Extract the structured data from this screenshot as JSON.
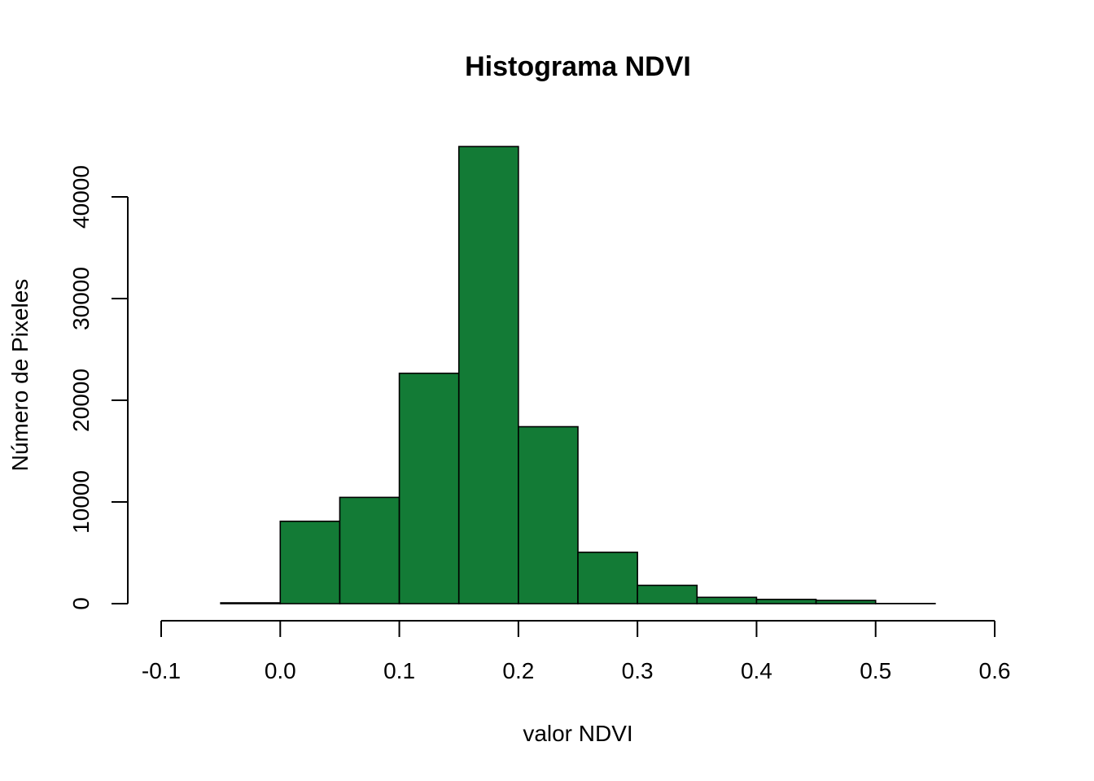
{
  "chart_data": {
    "type": "bar",
    "title": "Histograma NDVI",
    "xlabel": "valor NDVI",
    "ylabel": "Número de Pixeles",
    "bar_color": "#137b36",
    "xlim": [
      -0.1,
      0.6
    ],
    "ylim": [
      0,
      45000
    ],
    "x_ticks": [
      -0.1,
      0.0,
      0.1,
      0.2,
      0.3,
      0.4,
      0.5,
      0.6
    ],
    "x_tick_labels": [
      "-0.1",
      "0.0",
      "0.1",
      "0.2",
      "0.3",
      "0.4",
      "0.5",
      "0.6"
    ],
    "y_ticks": [
      0,
      10000,
      20000,
      30000,
      40000
    ],
    "y_tick_labels": [
      "0",
      "10000",
      "20000",
      "30000",
      "40000"
    ],
    "bins": [
      {
        "start": -0.1,
        "end": -0.05,
        "count": 0
      },
      {
        "start": -0.05,
        "end": 0.0,
        "count": 80
      },
      {
        "start": 0.0,
        "end": 0.05,
        "count": 8100
      },
      {
        "start": 0.05,
        "end": 0.1,
        "count": 10450
      },
      {
        "start": 0.1,
        "end": 0.15,
        "count": 22650
      },
      {
        "start": 0.15,
        "end": 0.2,
        "count": 44950
      },
      {
        "start": 0.2,
        "end": 0.25,
        "count": 17400
      },
      {
        "start": 0.25,
        "end": 0.3,
        "count": 5050
      },
      {
        "start": 0.3,
        "end": 0.35,
        "count": 1800
      },
      {
        "start": 0.35,
        "end": 0.4,
        "count": 620
      },
      {
        "start": 0.4,
        "end": 0.45,
        "count": 420
      },
      {
        "start": 0.45,
        "end": 0.5,
        "count": 320
      },
      {
        "start": 0.5,
        "end": 0.55,
        "count": 15
      },
      {
        "start": 0.55,
        "end": 0.6,
        "count": 0
      }
    ]
  }
}
